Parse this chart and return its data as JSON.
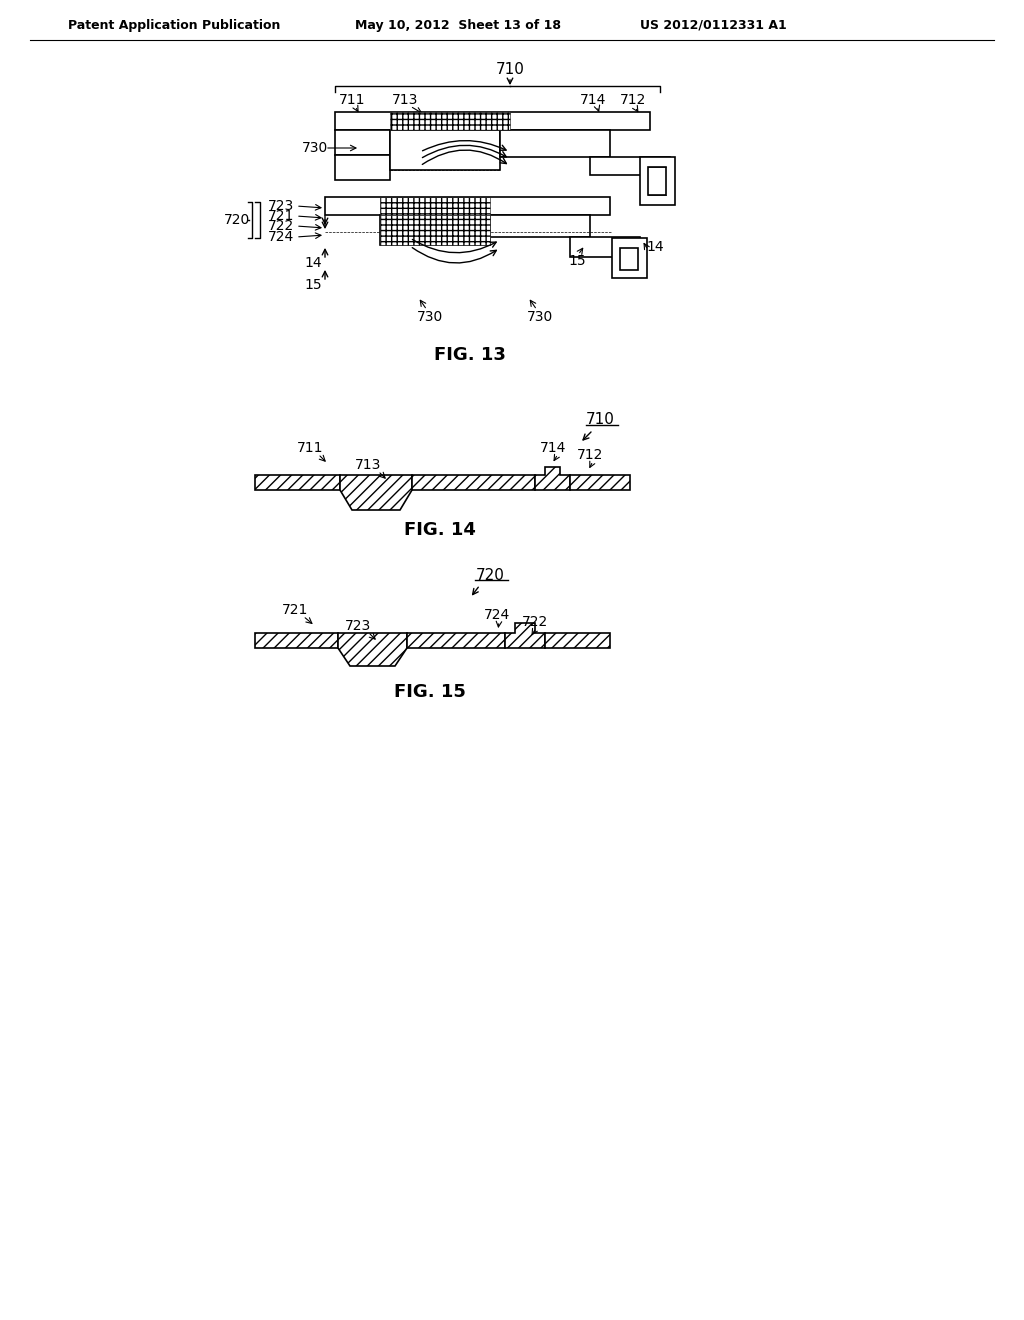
{
  "header_left": "Patent Application Publication",
  "header_mid": "May 10, 2012  Sheet 13 of 18",
  "header_right": "US 2012/0112331 A1",
  "fig13_label": "FIG. 13",
  "fig14_label": "FIG. 14",
  "fig15_label": "FIG. 15",
  "bg_color": "#ffffff",
  "line_color": "#000000"
}
